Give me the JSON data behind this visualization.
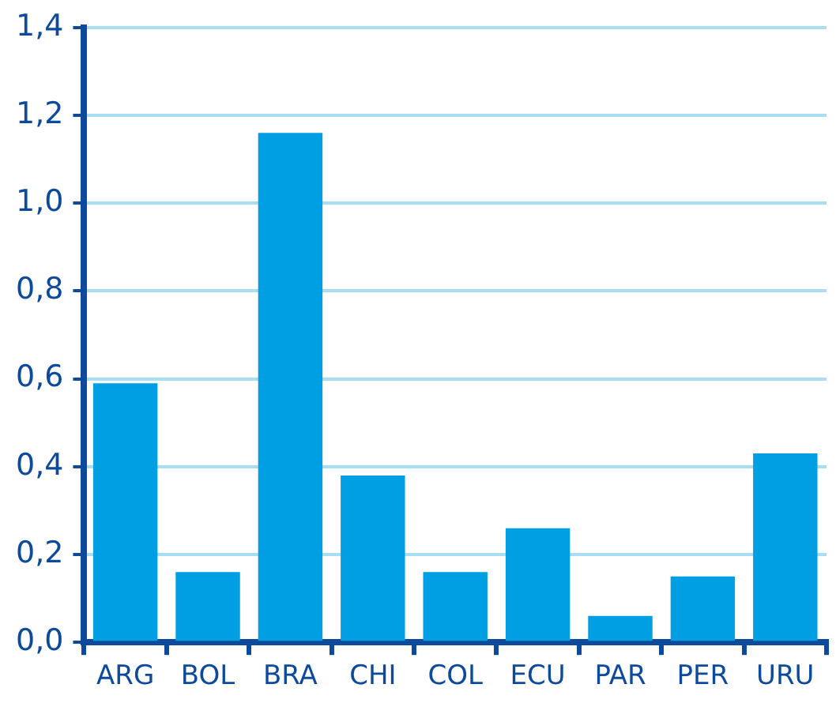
{
  "chart_data": {
    "type": "bar",
    "categories": [
      "ARG",
      "BOL",
      "BRA",
      "CHI",
      "COL",
      "ECU",
      "PAR",
      "PER",
      "URU"
    ],
    "values": [
      0.59,
      0.16,
      1.16,
      0.38,
      0.16,
      0.26,
      0.06,
      0.15,
      0.43
    ],
    "color": "#009fe3",
    "ylim": [
      0,
      1.4
    ],
    "yticks": [
      {
        "value": 0,
        "label": "0,0"
      },
      {
        "value": 0.2,
        "label": "0,2"
      },
      {
        "value": 0.4,
        "label": "0,4"
      },
      {
        "value": 0.6,
        "label": "0,6"
      },
      {
        "value": 0.8,
        "label": "0,8"
      },
      {
        "value": 1,
        "label": "1,0"
      },
      {
        "value": 1.2,
        "label": "1,2"
      },
      {
        "value": 1.4,
        "label": "1,4"
      }
    ],
    "grid": "y",
    "legend": false
  }
}
